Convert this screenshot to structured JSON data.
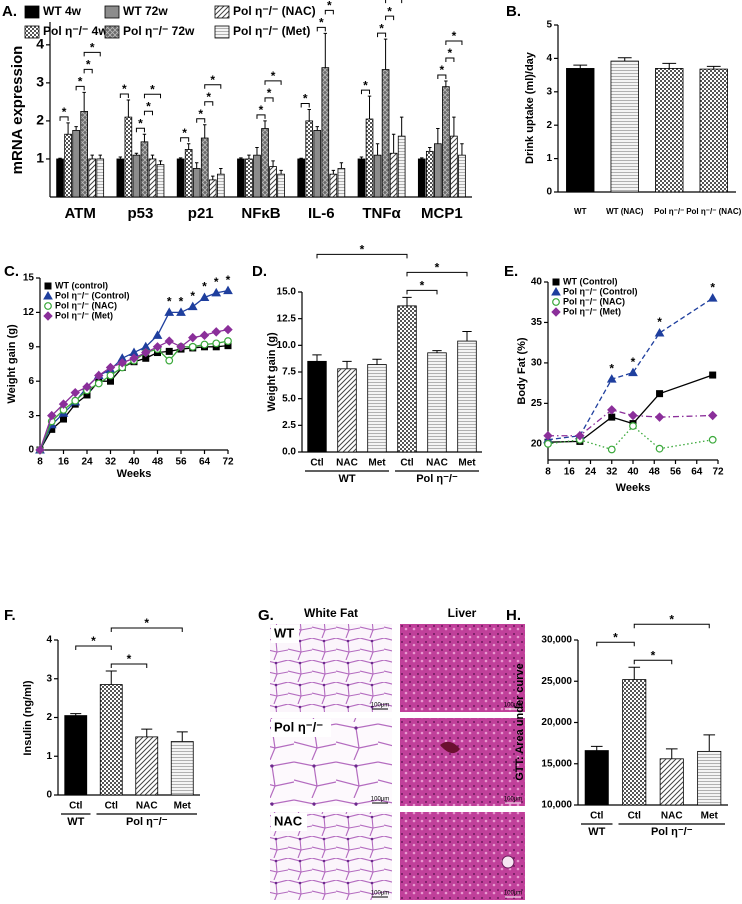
{
  "chart_data": [
    {
      "type": "bar",
      "label": "A.",
      "ylabel": "mRNA expression",
      "categories": [
        "ATM",
        "p53",
        "p21",
        "NFκB",
        "IL-6",
        "TNFα",
        "MCP1"
      ],
      "ylim": [
        0,
        4.6
      ],
      "yticks": [
        1,
        2,
        3,
        4
      ],
      "series": [
        {
          "name": "WT 4w",
          "color": "#000000",
          "pattern": "solid",
          "values": [
            1,
            1,
            1,
            1,
            1,
            1,
            1
          ],
          "errors": [
            0.02,
            0.05,
            0.03,
            0.03,
            0.02,
            0.05,
            0.03
          ]
        },
        {
          "name": "Pol η⁻/⁻ 4w",
          "color": "#000000",
          "pattern": "checker",
          "values": [
            1.65,
            2.1,
            1.25,
            1.0,
            2.0,
            2.05,
            1.2
          ],
          "errors": [
            0.3,
            0.45,
            0.15,
            0.1,
            0.3,
            0.6,
            0.1
          ]
        },
        {
          "name": "WT 72w",
          "color": "#8c8c8c",
          "pattern": "solid",
          "values": [
            1.75,
            1.1,
            0.75,
            1.1,
            1.75,
            1.1,
            1.4
          ],
          "errors": [
            0.1,
            0.05,
            0.15,
            0.2,
            0.1,
            0.3,
            0.4
          ]
        },
        {
          "name": "Pol η⁻/⁻ 72w",
          "color": "#666666",
          "pattern": "crosshatch",
          "values": [
            2.25,
            1.45,
            1.55,
            1.8,
            3.4,
            3.35,
            2.9
          ],
          "errors": [
            0.5,
            0.2,
            0.35,
            0.2,
            0.9,
            0.8,
            0.15
          ]
        },
        {
          "name": "Pol η⁻/⁻ (NAC)",
          "color": "#000000",
          "pattern": "diagonal",
          "values": [
            1.0,
            1.0,
            0.45,
            0.8,
            0.6,
            1.15,
            1.6
          ],
          "errors": [
            0.1,
            0.1,
            0.1,
            0.15,
            0.1,
            0.5,
            0.5
          ]
        },
        {
          "name": "Pol η⁻/⁻ (Met)",
          "color": "#000000",
          "pattern": "horizontal",
          "values": [
            1.0,
            0.85,
            0.6,
            0.6,
            0.75,
            1.6,
            1.1
          ],
          "errors": [
            0.1,
            0.1,
            0.15,
            0.1,
            0.15,
            0.5,
            0.3
          ]
        }
      ],
      "significance": [
        {
          "category": 0,
          "pair": [
            0,
            1
          ],
          "text": "*"
        },
        {
          "category": 0,
          "pair": [
            2,
            3
          ],
          "text": "*"
        },
        {
          "category": 0,
          "pair": [
            3,
            4
          ],
          "text": "*"
        },
        {
          "category": 0,
          "pair": [
            3,
            5
          ],
          "text": "*"
        },
        {
          "category": 1,
          "pair": [
            0,
            1
          ],
          "text": "*"
        },
        {
          "category": 1,
          "pair": [
            2,
            3
          ],
          "text": "*"
        },
        {
          "category": 1,
          "pair": [
            3,
            4
          ],
          "text": "*"
        },
        {
          "category": 1,
          "pair": [
            3,
            5
          ],
          "text": "*"
        },
        {
          "category": 2,
          "pair": [
            0,
            1
          ],
          "text": "*"
        },
        {
          "category": 2,
          "pair": [
            2,
            3
          ],
          "text": "*"
        },
        {
          "category": 2,
          "pair": [
            3,
            4
          ],
          "text": "*"
        },
        {
          "category": 2,
          "pair": [
            3,
            5
          ],
          "text": "*"
        },
        {
          "category": 3,
          "pair": [
            2,
            3
          ],
          "text": "*"
        },
        {
          "category": 3,
          "pair": [
            3,
            4
          ],
          "text": "*"
        },
        {
          "category": 3,
          "pair": [
            3,
            5
          ],
          "text": "*"
        },
        {
          "category": 4,
          "pair": [
            0,
            1
          ],
          "text": "*"
        },
        {
          "category": 4,
          "pair": [
            2,
            3
          ],
          "text": "*"
        },
        {
          "category": 4,
          "pair": [
            3,
            4
          ],
          "text": "*"
        },
        {
          "category": 4,
          "pair": [
            3,
            5
          ],
          "text": "*"
        },
        {
          "category": 5,
          "pair": [
            0,
            1
          ],
          "text": "*"
        },
        {
          "category": 5,
          "pair": [
            2,
            3
          ],
          "text": "*"
        },
        {
          "category": 5,
          "pair": [
            3,
            4
          ],
          "text": "*"
        },
        {
          "category": 5,
          "pair": [
            3,
            5
          ],
          "text": "*"
        },
        {
          "category": 6,
          "pair": [
            2,
            3
          ],
          "text": "*"
        },
        {
          "category": 6,
          "pair": [
            3,
            4
          ],
          "text": "*"
        },
        {
          "category": 6,
          "pair": [
            3,
            5
          ],
          "text": "*"
        }
      ]
    },
    {
      "type": "bar",
      "label": "B.",
      "ylabel": "Drink uptake (ml)/day",
      "categories": [
        "WT",
        "WT (NAC)",
        "Pol η⁻/⁻",
        "Pol η⁻/⁻ (NAC)"
      ],
      "values": [
        3.7,
        3.92,
        3.7,
        3.68
      ],
      "errors": [
        0.1,
        0.1,
        0.15,
        0.08
      ],
      "color": "#000000",
      "patterns": [
        "solid",
        "horizontal",
        "checker",
        "checker"
      ],
      "ylim": [
        0,
        5
      ],
      "yticks": [
        0,
        1,
        2,
        3,
        4,
        5
      ]
    },
    {
      "type": "line",
      "label": "C.",
      "ylabel": "Weight gain (g)",
      "xlabel": "Weeks",
      "x": [
        8,
        12,
        16,
        20,
        24,
        28,
        32,
        36,
        40,
        44,
        48,
        52,
        56,
        60,
        64,
        68,
        72
      ],
      "xlim": [
        8,
        72
      ],
      "xticks": [
        8,
        16,
        24,
        32,
        40,
        48,
        56,
        64,
        72
      ],
      "ylim": [
        0,
        15
      ],
      "yticks": [
        0,
        3,
        6,
        9,
        12,
        15
      ],
      "series": [
        {
          "name": "WT (control)",
          "color": "#000000",
          "marker": "square",
          "dash": "solid",
          "values": [
            0,
            1.8,
            2.7,
            4,
            4.8,
            6,
            6,
            7.2,
            7.7,
            8,
            8.5,
            8.6,
            8.8,
            8.9,
            9,
            9,
            9.1
          ]
        },
        {
          "name": "Pol η⁻/⁻ (Control)",
          "color": "#1f3f9e",
          "marker": "triangle",
          "dash": "solid",
          "values": [
            0,
            2.2,
            3.2,
            4.2,
            5.5,
            6.5,
            7,
            8,
            8.5,
            9,
            10,
            12,
            12,
            12.5,
            13.3,
            13.7,
            13.9
          ]
        },
        {
          "name": "Pol η⁻/⁻ (NAC)",
          "color": "#3aa83a",
          "marker": "circle-open",
          "dash": "solid",
          "values": [
            0,
            2.5,
            3.5,
            4.3,
            5.2,
            5.8,
            6.5,
            7.2,
            7.8,
            8.5,
            8.8,
            7.8,
            9,
            9,
            9.2,
            9.3,
            9.5
          ]
        },
        {
          "name": "Pol η⁻/⁻ (Met)",
          "color": "#8b2f9a",
          "marker": "diamond",
          "dash": "solid",
          "values": [
            0,
            3,
            4,
            5,
            5.5,
            6.5,
            7.2,
            7.6,
            8,
            8.5,
            9,
            9.5,
            9,
            9.8,
            10,
            10.3,
            10.5
          ]
        }
      ],
      "annotations": [
        {
          "x": 52,
          "text": "*"
        },
        {
          "x": 56,
          "text": "*"
        },
        {
          "x": 60,
          "text": "*"
        },
        {
          "x": 64,
          "text": "*"
        },
        {
          "x": 68,
          "text": "*"
        },
        {
          "x": 72,
          "text": "*"
        }
      ]
    },
    {
      "type": "bar",
      "label": "D.",
      "ylabel": "Weight gain (g)",
      "categories": [
        "Ctl",
        "NAC",
        "Met",
        "Ctl",
        "NAC",
        "Met"
      ],
      "category_groups": [
        "WT",
        "WT",
        "WT",
        "Pol η⁻/⁻",
        "Pol η⁻/⁻",
        "Pol η⁻/⁻"
      ],
      "values": [
        8.5,
        7.8,
        8.2,
        13.7,
        9.3,
        10.4
      ],
      "errors": [
        0.6,
        0.7,
        0.5,
        0.8,
        0.2,
        0.9
      ],
      "color": "#000000",
      "patterns": [
        "solid",
        "diagonal",
        "horizontal",
        "checker",
        "horizontal",
        "horizontal"
      ],
      "ylim": [
        0,
        15
      ],
      "yticks": [
        {
          "value": 0,
          "label": "0.0"
        },
        {
          "value": 2.5,
          "label": "2.5"
        },
        {
          "value": 5,
          "label": "5.0"
        },
        {
          "value": 7.5,
          "label": "7.5"
        },
        {
          "value": 10,
          "label": "10.0"
        },
        {
          "value": 12.5,
          "label": "12.5"
        },
        {
          "value": 15,
          "label": "15.0"
        }
      ],
      "significance": [
        {
          "pair": [
            3,
            4
          ],
          "text": "*"
        },
        {
          "pair": [
            3,
            5
          ],
          "text": "*"
        },
        {
          "pair": [
            0,
            3
          ],
          "text": "*"
        }
      ]
    },
    {
      "type": "line",
      "label": "E.",
      "ylabel": "Body Fat (%)",
      "xlabel": "Weeks",
      "x": [
        8,
        20,
        32,
        40,
        50,
        70
      ],
      "xlim": [
        8,
        72
      ],
      "xticks": [
        8,
        16,
        24,
        32,
        40,
        48,
        56,
        64,
        72
      ],
      "ylim": [
        18,
        40
      ],
      "yticks": [
        20,
        25,
        30,
        35,
        40
      ],
      "series": [
        {
          "name": "WT (Control)",
          "color": "#000000",
          "marker": "square",
          "dash": "solid",
          "values": [
            20.2,
            20.3,
            23.3,
            22.5,
            26.2,
            28.5
          ]
        },
        {
          "name": "Pol η⁻/⁻ (Control)",
          "color": "#1f3f9e",
          "marker": "triangle",
          "dash": "dashed",
          "values": [
            20.5,
            21,
            28,
            28.8,
            33.7,
            38
          ]
        },
        {
          "name": "Pol η⁻/⁻ (NAC)",
          "color": "#3aa83a",
          "marker": "circle-open",
          "dash": "dotted",
          "values": [
            20,
            20.5,
            19.3,
            22.2,
            19.4,
            20.5
          ]
        },
        {
          "name": "Pol η⁻/⁻ (Met)",
          "color": "#8b2f9a",
          "marker": "diamond",
          "dash": "dashdot",
          "values": [
            21,
            21,
            24.2,
            23.5,
            23.3,
            23.5
          ]
        }
      ],
      "annotations": [
        {
          "x": 32,
          "text": "*"
        },
        {
          "x": 40,
          "text": "*"
        },
        {
          "x": 50,
          "text": "*"
        },
        {
          "x": 70,
          "text": "*"
        }
      ]
    },
    {
      "type": "bar",
      "label": "F.",
      "ylabel": "Insulin (ng/ml)",
      "categories": [
        "Ctl",
        "Ctl",
        "NAC",
        "Met"
      ],
      "category_groups": [
        "WT",
        "Pol η⁻/⁻",
        "Pol η⁻/⁻",
        "Pol η⁻/⁻"
      ],
      "values": [
        2.05,
        2.85,
        1.5,
        1.38
      ],
      "errors": [
        0.05,
        0.35,
        0.2,
        0.25
      ],
      "color": "#000000",
      "patterns": [
        "solid",
        "checker",
        "diagonal",
        "horizontal"
      ],
      "ylim": [
        0,
        4
      ],
      "yticks": [
        0,
        1,
        2,
        3,
        4
      ],
      "significance": [
        {
          "pair": [
            1,
            2
          ],
          "text": "*"
        },
        {
          "pair": [
            0,
            1
          ],
          "text": "*"
        },
        {
          "pair": [
            1,
            3
          ],
          "text": "*"
        }
      ]
    },
    {
      "type": "bar",
      "label": "H.",
      "ylabel": "GTT: Area under curve",
      "categories": [
        "Ctl",
        "Ctl",
        "NAC",
        "Met"
      ],
      "category_groups": [
        "WT",
        "Pol η⁻/⁻",
        "Pol η⁻/⁻",
        "Pol η⁻/⁻"
      ],
      "values": [
        16600,
        25200,
        15600,
        16500
      ],
      "errors": [
        500,
        1500,
        1200,
        2000
      ],
      "color": "#000000",
      "patterns": [
        "solid",
        "checker",
        "diagonal",
        "horizontal"
      ],
      "ylim": [
        10000,
        30000
      ],
      "yticks": [
        {
          "value": 10000,
          "label": "10,000"
        },
        {
          "value": 15000,
          "label": "15,000"
        },
        {
          "value": 20000,
          "label": "20,000"
        },
        {
          "value": 25000,
          "label": "25,000"
        },
        {
          "value": 30000,
          "label": "30,000"
        }
      ],
      "significance": [
        {
          "pair": [
            1,
            2
          ],
          "text": "*"
        },
        {
          "pair": [
            0,
            1
          ],
          "text": "*"
        },
        {
          "pair": [
            1,
            3
          ],
          "text": "*"
        }
      ]
    }
  ],
  "panel_g": {
    "label": "G.",
    "columns": [
      "White Fat",
      "Liver"
    ],
    "rows": [
      "WT",
      "Pol η⁻/⁻",
      "NAC"
    ],
    "scale_bar": "100μm"
  }
}
